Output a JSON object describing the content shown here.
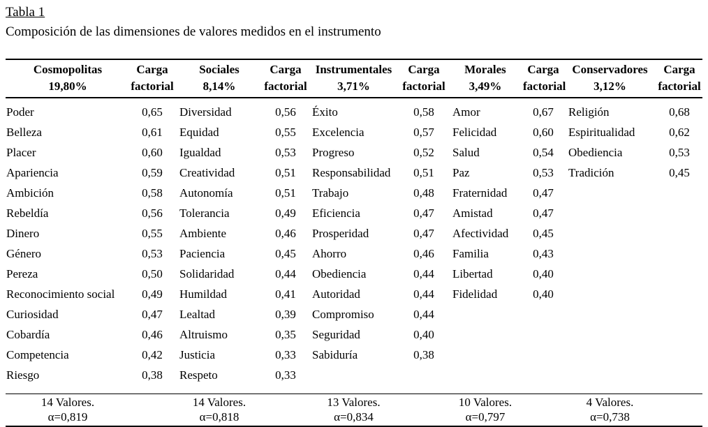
{
  "page": {
    "title": "Tabla 1",
    "caption": "Composición de las dimensiones de valores medidos en el instrumento"
  },
  "colors": {
    "text": "#000000",
    "background": "#ffffff",
    "rule": "#000000"
  },
  "table": {
    "carga_header": {
      "line1": "Carga",
      "line2": "factorial"
    },
    "groups": [
      {
        "name": "Cosmopolitas",
        "percent": "19,80%",
        "footer": {
          "count": "14 Valores.",
          "alpha": "α=0,819"
        },
        "items": [
          {
            "value": "Poder",
            "carga": "0,65"
          },
          {
            "value": "Belleza",
            "carga": "0,61"
          },
          {
            "value": "Placer",
            "carga": "0,60"
          },
          {
            "value": "Apariencia",
            "carga": "0,59"
          },
          {
            "value": "Ambición",
            "carga": "0,58"
          },
          {
            "value": "Rebeldía",
            "carga": "0,56"
          },
          {
            "value": "Dinero",
            "carga": "0,55"
          },
          {
            "value": "Género",
            "carga": "0,53"
          },
          {
            "value": "Pereza",
            "carga": "0,50"
          },
          {
            "value": "Reconocimiento social",
            "carga": "0,49"
          },
          {
            "value": "Curiosidad",
            "carga": "0,47"
          },
          {
            "value": "Cobardía",
            "carga": "0,46"
          },
          {
            "value": "Competencia",
            "carga": "0,42"
          },
          {
            "value": "Riesgo",
            "carga": "0,38"
          }
        ]
      },
      {
        "name": "Sociales",
        "percent": "8,14%",
        "footer": {
          "count": "14 Valores.",
          "alpha": "α=0,818"
        },
        "items": [
          {
            "value": "Diversidad",
            "carga": "0,56"
          },
          {
            "value": "Equidad",
            "carga": "0,55"
          },
          {
            "value": "Igualdad",
            "carga": "0,53"
          },
          {
            "value": "Creatividad",
            "carga": "0,51"
          },
          {
            "value": "Autonomía",
            "carga": "0,51"
          },
          {
            "value": "Tolerancia",
            "carga": "0,49"
          },
          {
            "value": "Ambiente",
            "carga": "0,46"
          },
          {
            "value": "Paciencia",
            "carga": "0,45"
          },
          {
            "value": "Solidaridad",
            "carga": "0,44"
          },
          {
            "value": "Humildad",
            "carga": "0,41"
          },
          {
            "value": "Lealtad",
            "carga": "0,39"
          },
          {
            "value": "Altruismo",
            "carga": "0,35"
          },
          {
            "value": "Justicia",
            "carga": "0,33"
          },
          {
            "value": "Respeto",
            "carga": "0,33"
          }
        ]
      },
      {
        "name": "Instrumentales",
        "percent": "3,71%",
        "footer": {
          "count": "13 Valores.",
          "alpha": "α=0,834"
        },
        "items": [
          {
            "value": "Éxito",
            "carga": "0,58"
          },
          {
            "value": "Excelencia",
            "carga": "0,57"
          },
          {
            "value": "Progreso",
            "carga": "0,52"
          },
          {
            "value": "Responsabilidad",
            "carga": "0,51"
          },
          {
            "value": "Trabajo",
            "carga": "0,48"
          },
          {
            "value": "Eficiencia",
            "carga": "0,47"
          },
          {
            "value": "Prosperidad",
            "carga": "0,47"
          },
          {
            "value": "Ahorro",
            "carga": "0,46"
          },
          {
            "value": "Obediencia",
            "carga": "0,44"
          },
          {
            "value": "Autoridad",
            "carga": "0,44"
          },
          {
            "value": "Compromiso",
            "carga": "0,44"
          },
          {
            "value": "Seguridad",
            "carga": "0,40"
          },
          {
            "value": "Sabiduría",
            "carga": "0,38"
          }
        ]
      },
      {
        "name": "Morales",
        "percent": "3,49%",
        "footer": {
          "count": "10 Valores.",
          "alpha": "α=0,797"
        },
        "items": [
          {
            "value": "Amor",
            "carga": "0,67"
          },
          {
            "value": "Felicidad",
            "carga": "0,60"
          },
          {
            "value": "Salud",
            "carga": "0,54"
          },
          {
            "value": "Paz",
            "carga": "0,53"
          },
          {
            "value": "Fraternidad",
            "carga": "0,47"
          },
          {
            "value": "Amistad",
            "carga": "0,47"
          },
          {
            "value": "Afectividad",
            "carga": "0,45"
          },
          {
            "value": "Familia",
            "carga": "0,43"
          },
          {
            "value": "Libertad",
            "carga": "0,40"
          },
          {
            "value": "Fidelidad",
            "carga": "0,40"
          }
        ]
      },
      {
        "name": "Conservadores",
        "percent": "3,12%",
        "footer": {
          "count": "4 Valores.",
          "alpha": "α=0,738"
        },
        "items": [
          {
            "value": "Religión",
            "carga": "0,68"
          },
          {
            "value": "Espiritualidad",
            "carga": "0,62"
          },
          {
            "value": "Obediencia",
            "carga": "0,53"
          },
          {
            "value": "Tradición",
            "carga": "0,45"
          }
        ]
      }
    ]
  }
}
